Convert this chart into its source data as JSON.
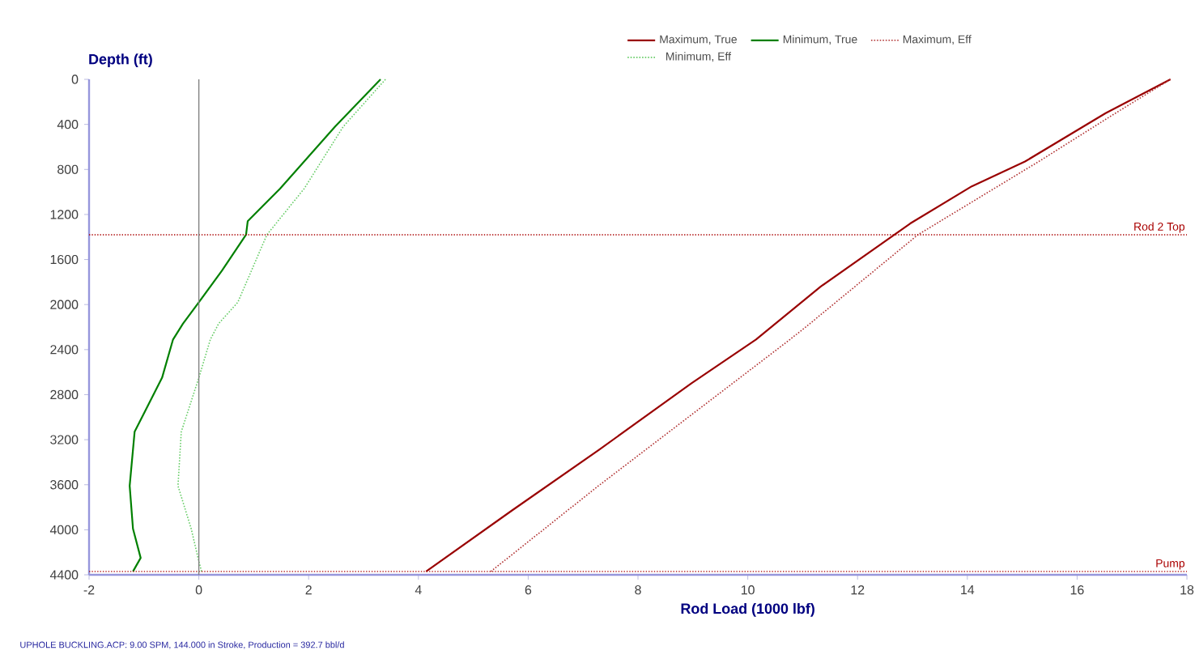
{
  "chart_data": {
    "type": "line",
    "xlabel": "Rod Load (1000 lbf)",
    "ylabel": "Depth (ft)",
    "xlim": [
      -2,
      18
    ],
    "ylim": [
      4400,
      0
    ],
    "xticks": [
      -2,
      0,
      2,
      4,
      6,
      8,
      10,
      12,
      14,
      16,
      18
    ],
    "yticks": [
      0,
      400,
      800,
      1200,
      1600,
      2000,
      2400,
      2800,
      3200,
      3600,
      4000,
      4400
    ],
    "grid": false,
    "legend": "top right",
    "marker": "none",
    "series": [
      {
        "name": "Maximum, True",
        "color": "#990000",
        "line_style": "solid",
        "x": [
          17.7,
          16.52,
          15.05,
          14.08,
          12.96,
          11.33,
          10.15,
          8.97,
          7.29,
          5.7,
          4.14
        ],
        "values": [
          0,
          300,
          730,
          950,
          1280,
          1840,
          2310,
          2700,
          3290,
          3830,
          4370
        ]
      },
      {
        "name": "Minimum, True",
        "color": "#008000",
        "line_style": "solid",
        "x": [
          3.31,
          2.48,
          1.48,
          0.89,
          0.86,
          0.42,
          0.0,
          -0.29,
          -0.47,
          -0.67,
          -1.17,
          -1.26,
          -1.2,
          -1.06,
          -1.2
        ],
        "values": [
          0,
          420,
          970,
          1260,
          1380,
          1700,
          1980,
          2170,
          2310,
          2650,
          3130,
          3610,
          3990,
          4250,
          4370
        ]
      },
      {
        "name": "Maximum, Eff",
        "color": "#b03030",
        "line_style": "dotted",
        "x": [
          17.7,
          16.7,
          15.3,
          13.1,
          11.13,
          10.77,
          7.29,
          5.32
        ],
        "values": [
          0,
          300,
          730,
          1380,
          2170,
          2310,
          3606,
          4370
        ]
      },
      {
        "name": "Minimum, Eff",
        "color": "#66cc66",
        "line_style": "dotted",
        "x": [
          3.4,
          2.63,
          1.92,
          1.24,
          0.71,
          0.36,
          0.21,
          0.0,
          -0.32,
          -0.38,
          -0.14,
          0.0,
          0.05
        ],
        "values": [
          0,
          420,
          970,
          1380,
          1980,
          2170,
          2310,
          2650,
          3130,
          3610,
          3990,
          4280,
          4370
        ]
      }
    ],
    "ref_lines": [
      {
        "axis": "y",
        "value": 1380,
        "label": "Rod 2 Top",
        "color": "#aa0000",
        "line_style": "dotted"
      },
      {
        "axis": "y",
        "value": 4370,
        "label": "Pump",
        "color": "#aa0000",
        "line_style": "dotted"
      },
      {
        "axis": "x",
        "value": 0,
        "color": "#808080",
        "line_style": "solid"
      }
    ],
    "annotations": [
      "UPHOLE BUCKLING.ACP:  9.00 SPM, 144.000 in Stroke, Production = 392.7 bbl/d"
    ]
  }
}
